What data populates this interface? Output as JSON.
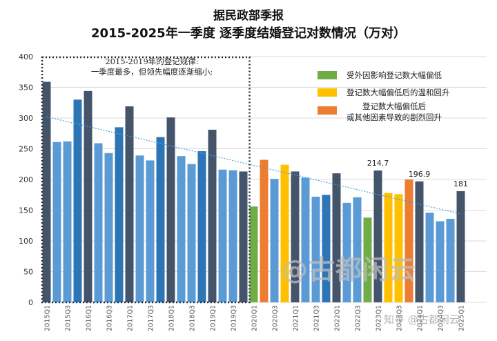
{
  "header": {
    "title_line1": "据民政部季报",
    "title_line2": "2015-2025年一季度 逐季度结婚登记对数情况（万对）"
  },
  "annotation": {
    "line1": "2015-2019年的登记规律:",
    "line2": "一季度最多，但领先幅度逐渐缩小;"
  },
  "legend": [
    {
      "color": "#70ad47",
      "text": "受外因影响登记数大幅偏低"
    },
    {
      "color": "#ffc000",
      "text": "登记数大幅偏低后的温和回升"
    },
    {
      "color": "#ed7d31",
      "text": "登记数大幅偏低后\n或其他因素导致的剧烈回升"
    }
  ],
  "watermark": {
    "main": "@古都闲云",
    "corner": "知乎 @古都闲云"
  },
  "colors": {
    "light_blue": "#5b9bd5",
    "mid_blue": "#2e75b6",
    "dark_navy": "#44546a",
    "green": "#70ad47",
    "yellow": "#ffc000",
    "orange": "#ed7d31",
    "trend": "#4aa3df"
  },
  "chart_data": {
    "type": "bar",
    "title": "2015-2025年一季度 逐季度结婚登记对数情况（万对）",
    "ylim": [
      0,
      400
    ],
    "yticks": [
      0,
      50,
      100,
      150,
      200,
      250,
      300,
      350,
      400
    ],
    "grid": true,
    "categories": [
      "2015Q1",
      "2015Q2",
      "2015Q3",
      "2015Q4",
      "2016Q1",
      "2016Q2",
      "2016Q3",
      "2016Q4",
      "2017Q1",
      "2017Q2",
      "2017Q3",
      "2017Q4",
      "2018Q1",
      "2018Q2",
      "2018Q3",
      "2018Q4",
      "2019Q1",
      "2019Q2",
      "2019Q3",
      "2019Q4",
      "2020Q1",
      "2020Q2",
      "2020Q3",
      "2020Q4",
      "2021Q1",
      "2021Q2",
      "2021Q3",
      "2021Q4",
      "2022Q1",
      "2022Q2",
      "2022Q3",
      "2022Q4",
      "2023Q1",
      "2023Q2",
      "2023Q3",
      "2023Q4",
      "2024Q1",
      "2024Q2",
      "2024Q3",
      "2024Q4",
      "2025Q1"
    ],
    "tick_labels": [
      "2015Q1",
      "",
      "2015Q3",
      "",
      "2016Q1",
      "",
      "2016Q3",
      "",
      "2017Q1",
      "",
      "2017Q3",
      "",
      "2018Q1",
      "",
      "2018Q3",
      "",
      "2019Q1",
      "",
      "2019Q3",
      "",
      "2020Q1",
      "",
      "2020Q3",
      "",
      "2021Q1",
      "",
      "2021Q3",
      "",
      "2022Q1",
      "",
      "2022Q3",
      "",
      "2023Q1",
      "",
      "2023Q3",
      "",
      "2024Q1",
      "",
      "2024Q3",
      "",
      "2025Q1"
    ],
    "values": [
      359,
      261,
      262,
      330,
      344,
      259,
      243,
      285,
      319,
      239,
      231,
      269,
      301,
      238,
      225,
      246,
      281,
      216,
      215,
      213,
      156,
      232,
      201,
      224,
      213,
      203,
      172,
      175,
      210,
      162,
      171,
      138,
      214.7,
      178,
      176,
      200,
      196.9,
      146,
      132,
      136,
      181
    ],
    "bar_colors": [
      "dark_navy",
      "light_blue",
      "light_blue",
      "mid_blue",
      "dark_navy",
      "light_blue",
      "light_blue",
      "mid_blue",
      "dark_navy",
      "light_blue",
      "light_blue",
      "mid_blue",
      "dark_navy",
      "light_blue",
      "light_blue",
      "mid_blue",
      "dark_navy",
      "light_blue",
      "light_blue",
      "dark_navy",
      "green",
      "orange",
      "light_blue",
      "yellow",
      "dark_navy",
      "light_blue",
      "light_blue",
      "mid_blue",
      "dark_navy",
      "light_blue",
      "light_blue",
      "green",
      "dark_navy",
      "yellow",
      "yellow",
      "orange",
      "dark_navy",
      "light_blue",
      "light_blue",
      "light_blue",
      "dark_navy"
    ],
    "data_labels": [
      {
        "index": 32,
        "text": "214.7"
      },
      {
        "index": 36,
        "text": "196.9"
      },
      {
        "index": 40,
        "text": "181"
      }
    ],
    "trendline": {
      "start": 302,
      "end": 144
    }
  }
}
